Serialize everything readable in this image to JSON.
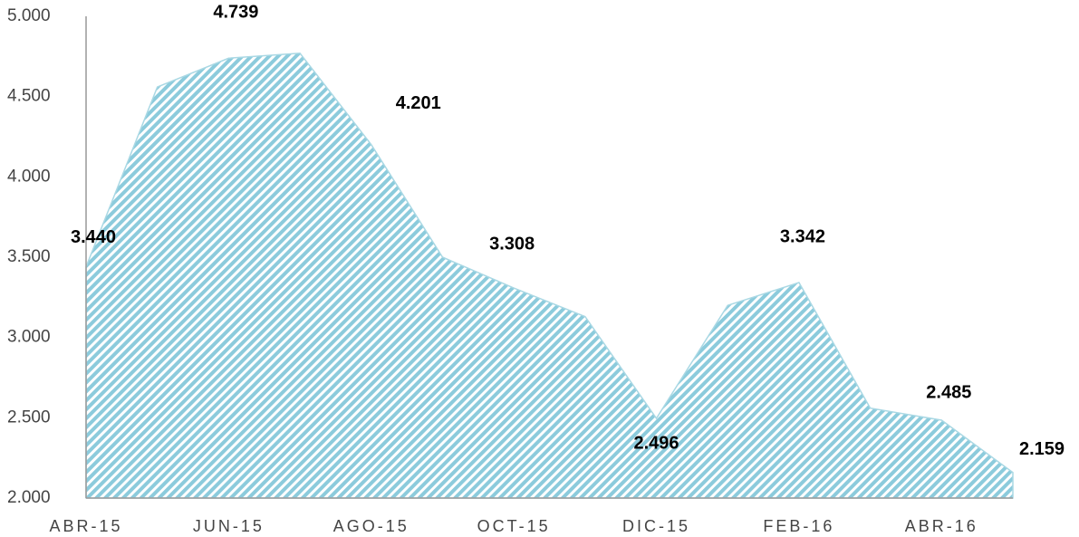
{
  "chart_data": {
    "type": "area",
    "categories": [
      "ABR-15",
      null,
      "JUN-15",
      null,
      "AGO-15",
      null,
      "OCT-15",
      null,
      "DIC-15",
      null,
      "FEB-16",
      null,
      "ABR-16",
      null
    ],
    "values": [
      3440,
      4560,
      4739,
      4770,
      4201,
      3500,
      3308,
      3130,
      2496,
      3200,
      3342,
      2560,
      2485,
      2159
    ],
    "value_labels": [
      "3.440",
      null,
      "4.739",
      null,
      "4.201",
      null,
      "3.308",
      null,
      "2.496",
      null,
      "3.342",
      null,
      "2.485",
      "2.159"
    ],
    "color": "#8ccbdc",
    "ylim": [
      2000,
      5000
    ],
    "yticks": [
      {
        "value": 2000,
        "label": "2.000"
      },
      {
        "value": 2500,
        "label": "2.500"
      },
      {
        "value": 3000,
        "label": "3.000"
      },
      {
        "value": 3500,
        "label": "3.500"
      },
      {
        "value": 4000,
        "label": "4.000"
      },
      {
        "value": 4500,
        "label": "4.500"
      },
      {
        "value": 5000,
        "label": "5.000"
      }
    ],
    "grid": false
  }
}
